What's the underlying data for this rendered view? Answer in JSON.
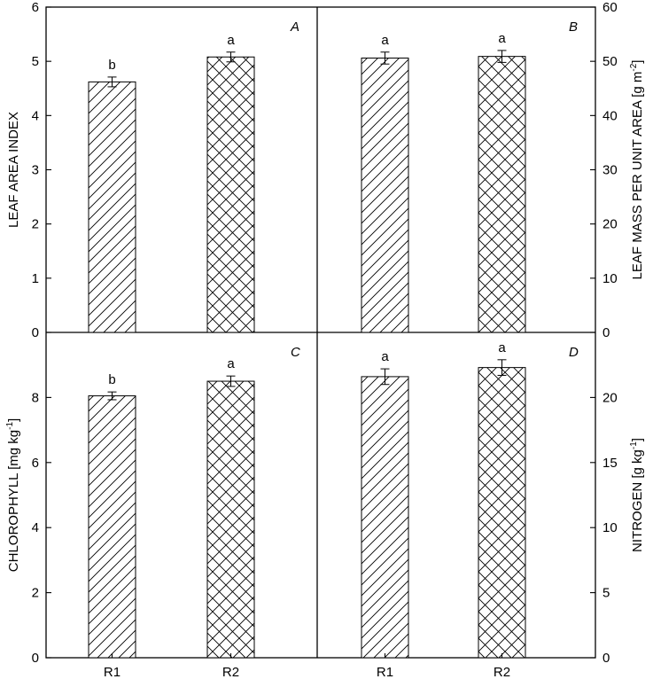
{
  "chart_data": [
    {
      "panel": "A",
      "type": "bar",
      "categories": [
        "R1",
        "R2"
      ],
      "values": [
        4.62,
        5.08
      ],
      "errors": [
        0.09,
        0.09
      ],
      "significance": [
        "b",
        "a"
      ],
      "ylabel": "LEAF AREA INDEX",
      "ylim": [
        0,
        6
      ],
      "yticks": [
        "0",
        "1",
        "2",
        "3",
        "4",
        "5",
        "6"
      ],
      "axis_side": "left"
    },
    {
      "panel": "B",
      "type": "bar",
      "categories": [
        "R1",
        "R2"
      ],
      "values": [
        50.6,
        50.9
      ],
      "errors": [
        1.1,
        1.1
      ],
      "significance": [
        "a",
        "a"
      ],
      "ylabel": "LEAF MASS PER UNIT AREA [g m",
      "ylabel_sup": "-2",
      "ylabel_end": "]",
      "ylim": [
        0,
        60
      ],
      "yticks": [
        "0",
        "10",
        "20",
        "30",
        "40",
        "50",
        "60"
      ],
      "axis_side": "right"
    },
    {
      "panel": "C",
      "type": "bar",
      "categories": [
        "R1",
        "R2"
      ],
      "values": [
        8.05,
        8.5
      ],
      "errors": [
        0.12,
        0.16
      ],
      "significance": [
        "b",
        "a"
      ],
      "ylabel": "CHLOROPHYLL [mg kg",
      "ylabel_sup": "-1",
      "ylabel_end": "]",
      "ylim": [
        0,
        10
      ],
      "yticks": [
        "0",
        "2",
        "4",
        "6",
        "8"
      ],
      "axis_side": "left"
    },
    {
      "panel": "D",
      "type": "bar",
      "categories": [
        "R1",
        "R2"
      ],
      "values": [
        21.6,
        22.3
      ],
      "errors": [
        0.6,
        0.6
      ],
      "significance": [
        "a",
        "a"
      ],
      "ylabel": "NITROGEN [g kg",
      "ylabel_sup": "-1",
      "ylabel_end": "]",
      "ylim": [
        0,
        25
      ],
      "yticks": [
        "0",
        "5",
        "10",
        "15",
        "20"
      ],
      "axis_side": "right"
    }
  ],
  "bar_patterns": [
    "single-hatch",
    "cross-hatch"
  ]
}
